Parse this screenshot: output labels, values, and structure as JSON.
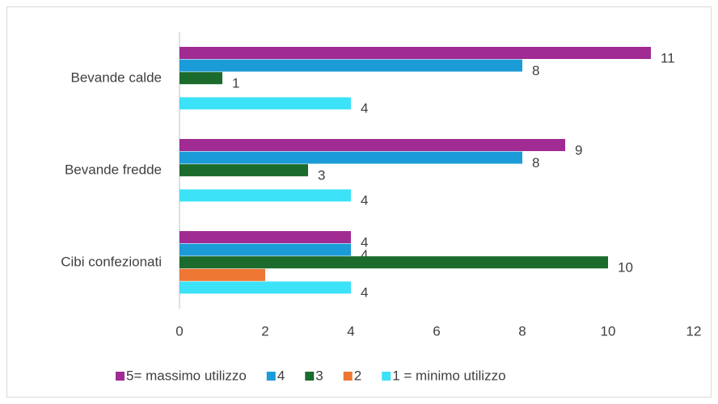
{
  "chart_data": {
    "type": "barh",
    "categories": [
      "Bevande calde",
      "Bevande fredde",
      "Cibi confezionati"
    ],
    "series": [
      {
        "name": "5= massimo utilizzo",
        "color": "#a02b93",
        "values": [
          11,
          9,
          4
        ],
        "show_labels": true
      },
      {
        "name": "4",
        "color": "#1b9bd7",
        "values": [
          8,
          8,
          4
        ],
        "show_labels": true
      },
      {
        "name": "3",
        "color": "#1b6b2c",
        "values": [
          1,
          3,
          10
        ],
        "show_labels": true
      },
      {
        "name": "2",
        "color": "#ee7733",
        "values": [
          null,
          null,
          2
        ],
        "show_labels": false
      },
      {
        "name": "1 = minimo utilizzo",
        "color": "#3ce2f7",
        "values": [
          4,
          4,
          4
        ],
        "show_labels": true
      }
    ],
    "xlim": [
      0,
      12
    ],
    "xticks": [
      0,
      2,
      4,
      6,
      8,
      10,
      12
    ],
    "grid": false,
    "legend": "bottom"
  }
}
